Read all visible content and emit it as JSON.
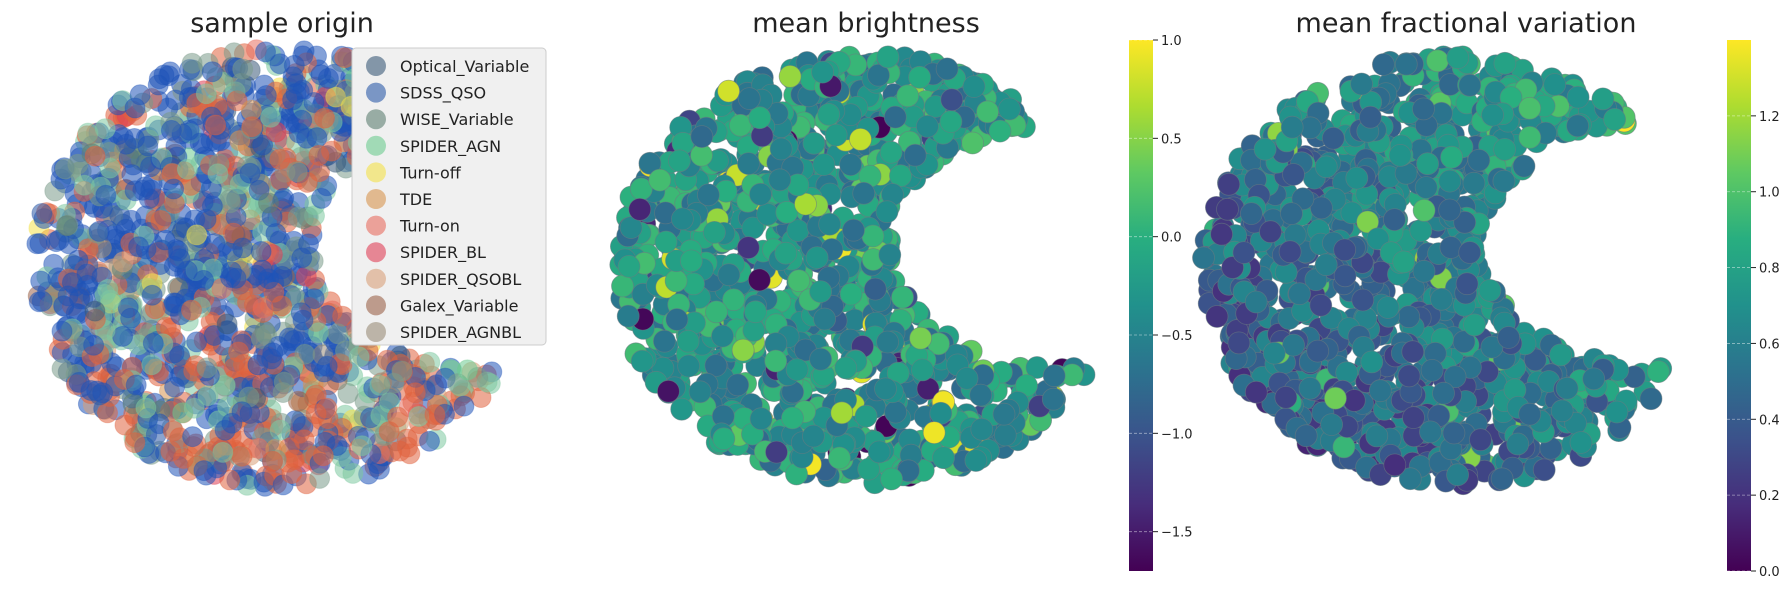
{
  "chart_data": [
    {
      "type": "scatter",
      "title": "sample origin",
      "legend": {
        "placement": "upper-right",
        "entries": [
          {
            "name": "Optical_Variable",
            "color": "#3a5a78"
          },
          {
            "name": "SDSS_QSO",
            "color": "#2c5aa8"
          },
          {
            "name": "WISE_Variable",
            "color": "#5e7f72"
          },
          {
            "name": "SPIDER_AGN",
            "color": "#6ccb90"
          },
          {
            "name": "Turn-off",
            "color": "#f3e14a"
          },
          {
            "name": "TDE",
            "color": "#d7944f"
          },
          {
            "name": "Turn-on",
            "color": "#e86d5f"
          },
          {
            "name": "SPIDER_BL",
            "color": "#df3f56"
          },
          {
            "name": "SPIDER_QSOBL",
            "color": "#d9a079"
          },
          {
            "name": "Galex_Variable",
            "color": "#9b634a"
          },
          {
            "name": "SPIDER_AGNBL",
            "color": "#9a8c78"
          }
        ]
      },
      "colors": {
        "dominant": "#1f53b8",
        "accent_red": "#e0623e",
        "accent_green": "#7ec8a0",
        "accent_sage": "#7a9a8a"
      }
    },
    {
      "type": "scatter",
      "title": "mean brightness",
      "colormap": "viridis",
      "colorbar": {
        "min": -1.7,
        "max": 1.0,
        "ticks": [
          "1.0",
          "0.5",
          "0.0",
          "−0.5",
          "−1.0",
          "−1.5"
        ]
      },
      "value_range": [
        -1.7,
        1.0
      ]
    },
    {
      "type": "scatter",
      "title": "mean fractional variation",
      "colormap": "viridis",
      "colorbar": {
        "min": 0.0,
        "max": 1.4,
        "ticks": [
          "1.2",
          "1.0",
          "0.8",
          "0.6",
          "0.4",
          "0.2",
          "0.0"
        ]
      },
      "value_range": [
        0.0,
        1.4
      ]
    }
  ]
}
